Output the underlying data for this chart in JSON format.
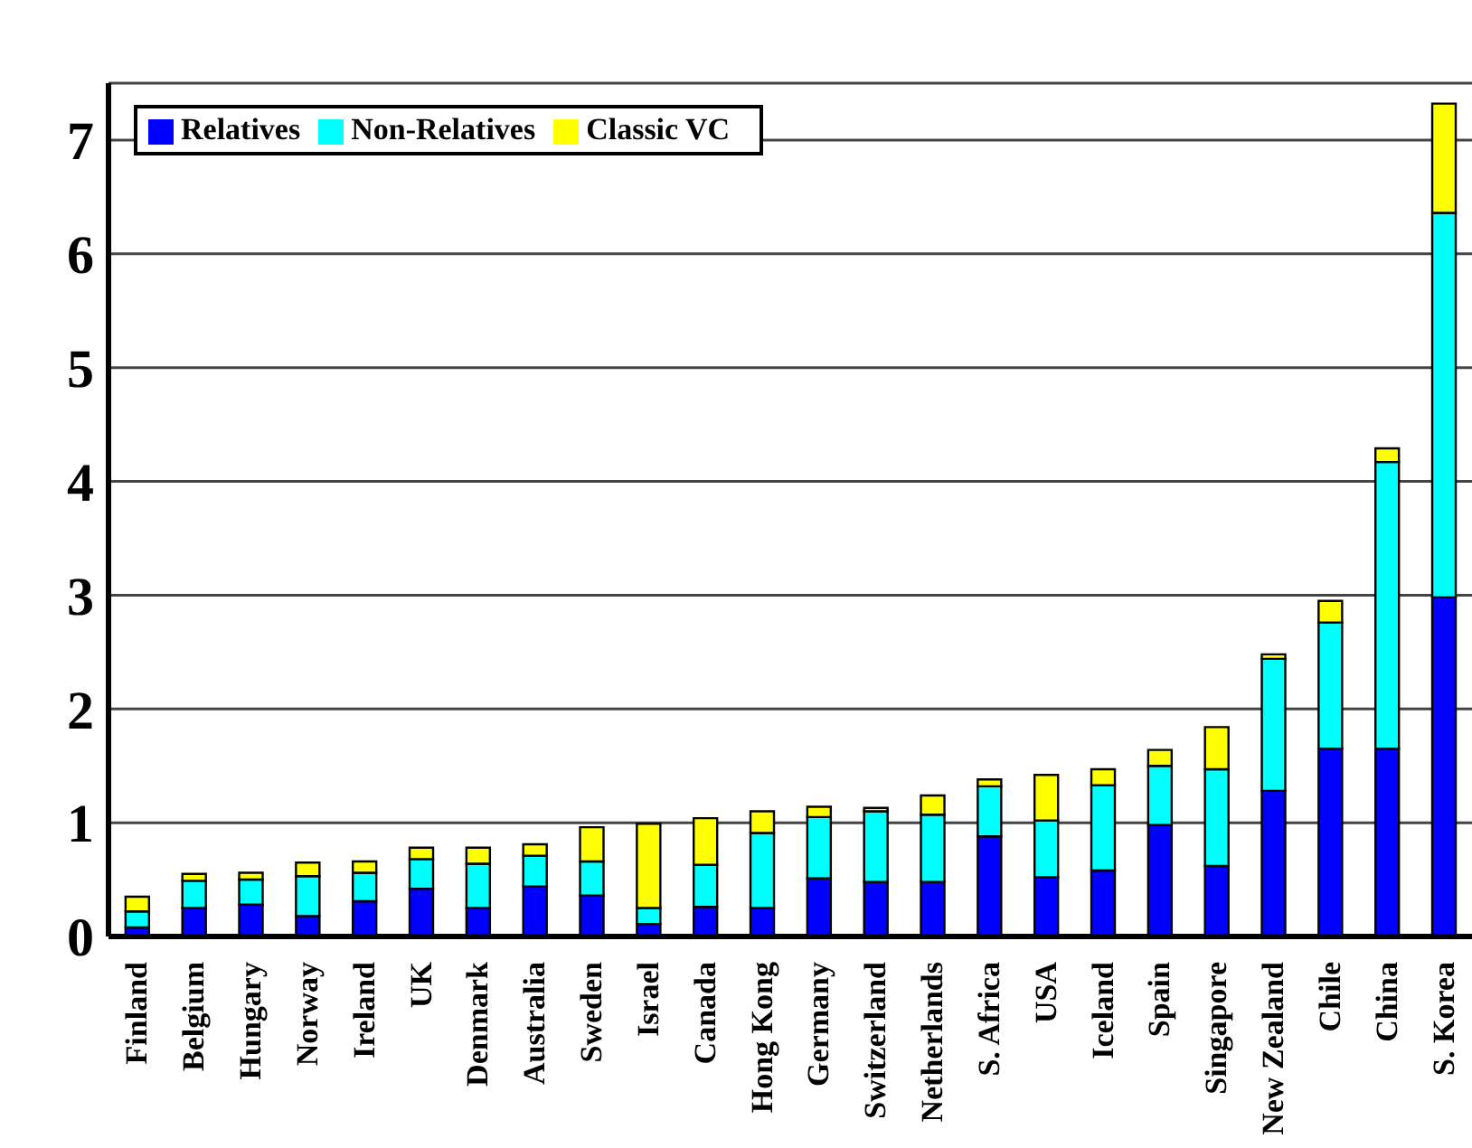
{
  "chart_data": {
    "type": "bar",
    "stacked": true,
    "categories": [
      "Finland",
      "Belgium",
      "Hungary",
      "Norway",
      "Ireland",
      "UK",
      "Denmark",
      "Australia",
      "Sweden",
      "Israel",
      "Canada",
      "Hong Kong",
      "Germany",
      "Switzerland",
      "Netherlands",
      "S. Africa",
      "USA",
      "Iceland",
      "Spain",
      "Singapore",
      "New Zealand",
      "Chile",
      "China",
      "S. Korea"
    ],
    "series": [
      {
        "name": "Relatives",
        "color": "#0000ff",
        "values": [
          0.08,
          0.25,
          0.28,
          0.18,
          0.31,
          0.42,
          0.25,
          0.44,
          0.36,
          0.11,
          0.26,
          0.25,
          0.51,
          0.48,
          0.48,
          0.88,
          0.52,
          0.58,
          0.98,
          0.62,
          1.28,
          1.65,
          1.65,
          2.98
        ]
      },
      {
        "name": "Non-Relatives",
        "color": "#00ffff",
        "values": [
          0.14,
          0.24,
          0.22,
          0.35,
          0.25,
          0.26,
          0.39,
          0.27,
          0.3,
          0.14,
          0.37,
          0.66,
          0.54,
          0.62,
          0.59,
          0.44,
          0.5,
          0.75,
          0.52,
          0.85,
          1.16,
          1.11,
          2.52,
          3.38
        ]
      },
      {
        "name": "Classic VC",
        "color": "#ffff00",
        "values": [
          0.13,
          0.06,
          0.06,
          0.12,
          0.1,
          0.1,
          0.14,
          0.1,
          0.3,
          0.74,
          0.41,
          0.19,
          0.09,
          0.03,
          0.17,
          0.06,
          0.4,
          0.14,
          0.14,
          0.37,
          0.04,
          0.19,
          0.12,
          0.96
        ]
      }
    ],
    "ylim": [
      0,
      7.5
    ],
    "yticks": [
      0,
      1,
      2,
      3,
      4,
      5,
      6,
      7
    ],
    "grid": "y",
    "legend": "top left"
  }
}
